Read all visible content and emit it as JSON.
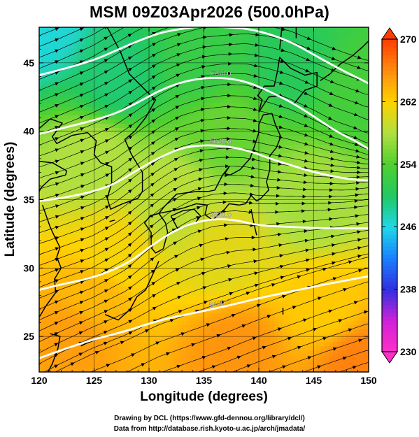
{
  "chart_data": {
    "type": "heatmap",
    "title": "MSM 09Z03Apr2026 (500.0hPa)",
    "xlabel": "Longitude (degrees)",
    "ylabel": "Latitude  (degrees)",
    "xlim": [
      120,
      150
    ],
    "ylim": [
      22.4,
      47.6
    ],
    "x_ticks": [
      120,
      125,
      130,
      135,
      140,
      145,
      150
    ],
    "y_ticks": [
      25,
      30,
      35,
      40,
      45
    ],
    "grid": true,
    "grid_lines": {
      "lon": [
        125,
        130,
        135,
        140,
        145
      ],
      "lat": [
        25,
        30,
        35,
        40,
        45
      ]
    },
    "colorbar": {
      "vmin": 230,
      "vmax": 270,
      "tick_values": [
        230,
        238,
        246,
        254,
        262,
        270
      ],
      "tick_labels": [
        "230",
        "238",
        "246",
        "254",
        "262",
        "270"
      ],
      "colors": [
        "#ff30c8",
        "#d020d8",
        "#3030e0",
        "#1880ff",
        "#20d8e8",
        "#22c860",
        "#50d030",
        "#b0e040",
        "#ffd200",
        "#ff8c10",
        "#ff3c00"
      ],
      "extend": "both"
    },
    "shading_field": {
      "units": "K",
      "description": "temperature",
      "values_at": [
        {
          "lon": 120,
          "lat": 47.6,
          "value": 246.5
        },
        {
          "lon": 127,
          "lat": 44,
          "value": 249.5
        },
        {
          "lon": 135,
          "lat": 45,
          "value": 252
        },
        {
          "lon": 143,
          "lat": 45,
          "value": 250.5
        },
        {
          "lon": 149,
          "lat": 43,
          "value": 253
        },
        {
          "lon": 137,
          "lat": 40,
          "value": 255
        },
        {
          "lon": 125,
          "lat": 38,
          "value": 258
        },
        {
          "lon": 132,
          "lat": 35,
          "value": 258.5
        },
        {
          "lon": 145,
          "lat": 35,
          "value": 257.5
        },
        {
          "lon": 127,
          "lat": 31,
          "value": 261.5
        },
        {
          "lon": 137,
          "lat": 31,
          "value": 260.5
        },
        {
          "lon": 125,
          "lat": 28,
          "value": 263.5
        },
        {
          "lon": 146,
          "lat": 27,
          "value": 262.5
        },
        {
          "lon": 123,
          "lat": 25,
          "value": 265
        },
        {
          "lon": 138,
          "lat": 24,
          "value": 265.5
        },
        {
          "lon": 149,
          "lat": 23,
          "value": 266.5
        }
      ]
    },
    "contours": [
      {
        "label": "5400.0",
        "points": [
          [
            120,
            23.4
          ],
          [
            122,
            24.0
          ],
          [
            125,
            24.8
          ],
          [
            128,
            25.4
          ],
          [
            131,
            26.2
          ],
          [
            134,
            26.7
          ],
          [
            137,
            27.2
          ],
          [
            140,
            27.8
          ],
          [
            143,
            28.3
          ],
          [
            146,
            28.8
          ],
          [
            148,
            29.1
          ],
          [
            150,
            29.4
          ]
        ]
      },
      {
        "label": "5520.0",
        "points": [
          [
            120,
            28.4
          ],
          [
            122,
            28.8
          ],
          [
            125,
            29.3
          ],
          [
            128,
            30.3
          ],
          [
            130,
            31.5
          ],
          [
            132,
            32.6
          ],
          [
            134,
            33.3
          ],
          [
            136,
            33.6
          ],
          [
            138,
            33.5
          ],
          [
            140,
            33.1
          ],
          [
            143,
            33.0
          ],
          [
            146,
            32.9
          ],
          [
            148,
            32.9
          ],
          [
            150,
            32.9
          ]
        ]
      },
      {
        "label": "5640.0",
        "points": [
          [
            120,
            34.9
          ],
          [
            122,
            35.1
          ],
          [
            125,
            35.6
          ],
          [
            127,
            36.2
          ],
          [
            129,
            37.2
          ],
          [
            131,
            38.1
          ],
          [
            133,
            38.8
          ],
          [
            135,
            39.0
          ],
          [
            137,
            38.9
          ],
          [
            139,
            38.6
          ],
          [
            141,
            38.0
          ],
          [
            143,
            37.5
          ],
          [
            145,
            37.0
          ],
          [
            148,
            36.5
          ],
          [
            150,
            36.4
          ]
        ]
      },
      {
        "label": "5760.0",
        "points": [
          [
            120,
            39.8
          ],
          [
            122,
            40.2
          ],
          [
            125,
            40.8
          ],
          [
            127,
            41.3
          ],
          [
            129,
            42.1
          ],
          [
            131,
            43.0
          ],
          [
            133,
            43.6
          ],
          [
            135,
            43.9
          ],
          [
            137,
            43.9
          ],
          [
            139,
            43.6
          ],
          [
            141,
            42.9
          ],
          [
            143,
            42.1
          ],
          [
            145,
            41.1
          ],
          [
            147,
            40.0
          ],
          [
            149,
            39.2
          ],
          [
            150,
            38.7
          ]
        ]
      },
      {
        "label": "5880.0",
        "points": [
          [
            120,
            44.1
          ],
          [
            122,
            44.5
          ],
          [
            125,
            45.2
          ],
          [
            127,
            45.9
          ],
          [
            129,
            46.6
          ],
          [
            131,
            47.2
          ],
          [
            133,
            47.5
          ],
          [
            135,
            47.7
          ],
          [
            137,
            47.6
          ],
          [
            139,
            47.5
          ],
          [
            141,
            47.1
          ],
          [
            143,
            46.5
          ],
          [
            145,
            45.6
          ],
          [
            147,
            44.7
          ],
          [
            149,
            43.9
          ],
          [
            150,
            43.5
          ]
        ]
      }
    ],
    "wind": {
      "field": "streamlines with direction arrows",
      "direction": "westerly to west-southwesterly, broadly following the height contours"
    },
    "map": {
      "features": [
        "Japan",
        "Korean Peninsula",
        "Sakhalin",
        "Kuril Islands",
        "Ryukyu Islands",
        "Taiwan",
        "East China coast"
      ]
    }
  },
  "credits": {
    "line1": "Drawing by DCL (https://www.gfd-dennou.org/library/dcl/)",
    "line2": "Data from http://database.rish.kyoto-u.ac.jp/arch/jmadata/"
  }
}
